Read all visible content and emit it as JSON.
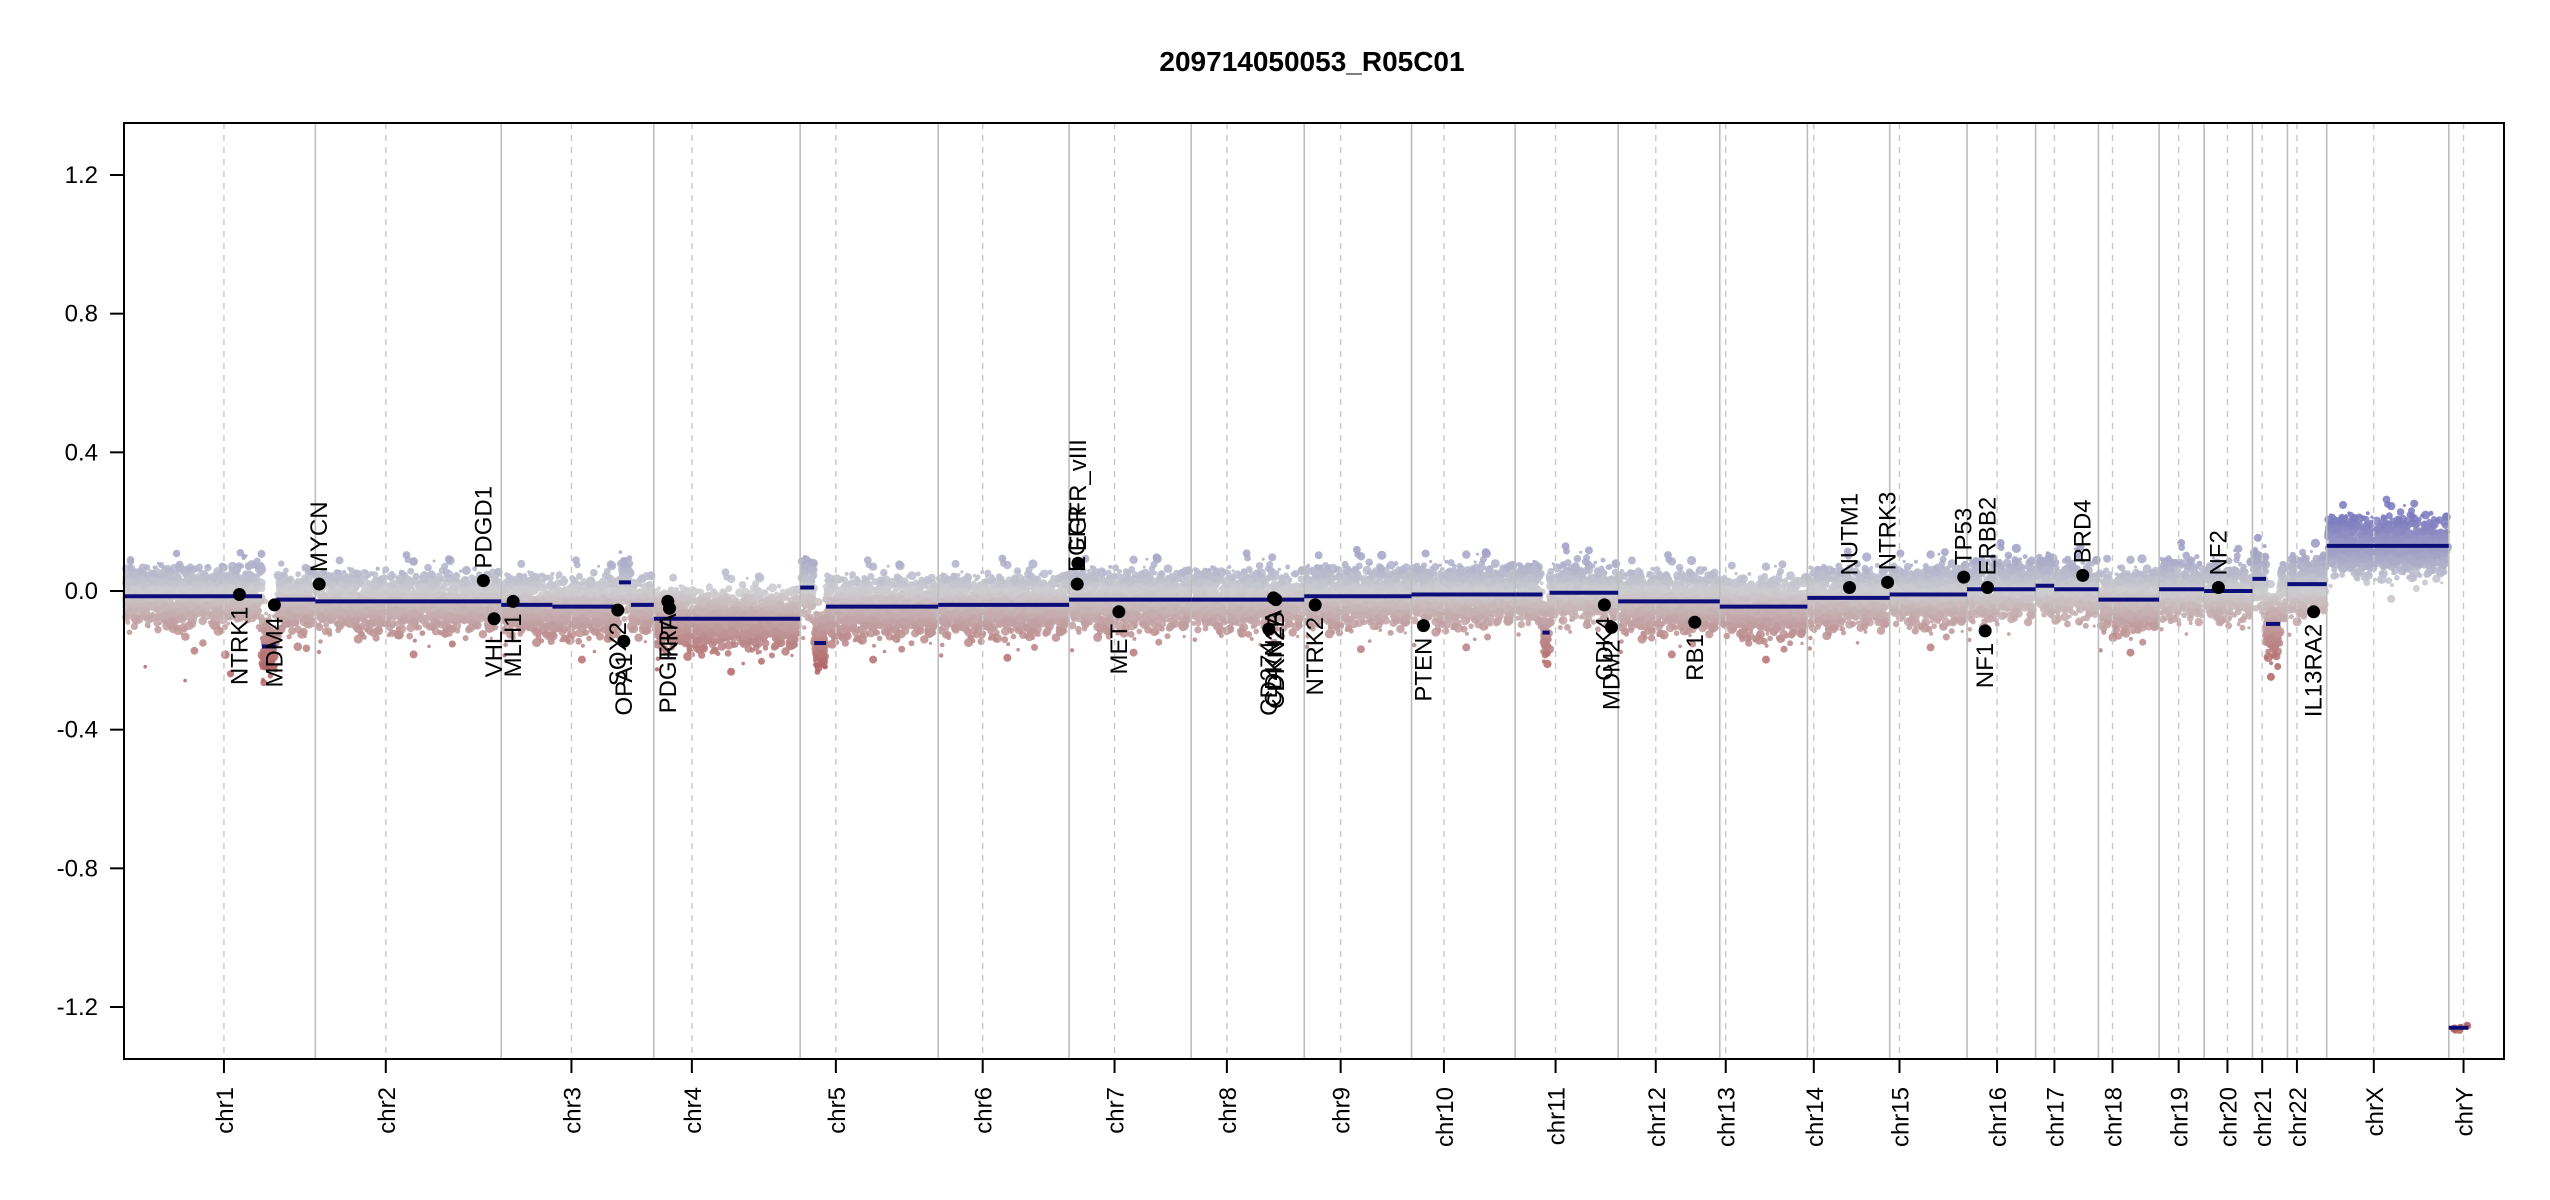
{
  "chart_data": {
    "type": "scatter",
    "title": "209714050053_R05C01",
    "xlabel": "",
    "ylabel": "",
    "ylim": [
      -1.35,
      1.35
    ],
    "y_ticks": [
      -1.2,
      -0.8,
      -0.4,
      0.0,
      0.4,
      0.8,
      1.2
    ],
    "y_tick_labels": [
      "-1.2",
      "-0.8",
      "-0.4",
      "0.0",
      "0.4",
      "0.8",
      "1.2"
    ],
    "grid": false,
    "x_units": "genome index (0-1000 scale)",
    "chromosomes": [
      {
        "name": "chr1",
        "start": 0,
        "end": 80.4,
        "centromere": 42.0
      },
      {
        "name": "chr2",
        "start": 80.4,
        "end": 158.5,
        "centromere": 110.0
      },
      {
        "name": "chr3",
        "start": 158.5,
        "end": 222.6,
        "centromere": 188.0
      },
      {
        "name": "chr4",
        "start": 222.6,
        "end": 284.1,
        "centromere": 238.6
      },
      {
        "name": "chr5",
        "start": 284.1,
        "end": 342.1,
        "centromere": 299.1
      },
      {
        "name": "chr6",
        "start": 342.1,
        "end": 397.1,
        "centromere": 360.8
      },
      {
        "name": "chr7",
        "start": 397.1,
        "end": 448.4,
        "centromere": 416.2
      },
      {
        "name": "chr8",
        "start": 448.4,
        "end": 495.9,
        "centromere": 463.4
      },
      {
        "name": "chr9",
        "start": 495.9,
        "end": 541.0,
        "centromere": 511.2
      },
      {
        "name": "chr10",
        "start": 541.0,
        "end": 584.5,
        "centromere": 554.6
      },
      {
        "name": "chr11",
        "start": 584.5,
        "end": 627.8,
        "centromere": 601.5
      },
      {
        "name": "chr12",
        "start": 627.8,
        "end": 670.5,
        "centromere": 643.6
      },
      {
        "name": "chr13",
        "start": 670.5,
        "end": 707.3,
        "centromere": 673.0
      },
      {
        "name": "chr14",
        "start": 707.3,
        "end": 741.9,
        "centromere": 710.0
      },
      {
        "name": "chr15",
        "start": 741.9,
        "end": 774.4,
        "centromere": 746.0
      },
      {
        "name": "chr16",
        "start": 774.4,
        "end": 803.2,
        "centromere": 787.0
      },
      {
        "name": "chr17",
        "start": 803.2,
        "end": 829.6,
        "centromere": 811.1
      },
      {
        "name": "chr18",
        "start": 829.6,
        "end": 855.1,
        "centromere": 835.5
      },
      {
        "name": "chr19",
        "start": 855.1,
        "end": 874.0,
        "centromere": 863.3
      },
      {
        "name": "chr20",
        "start": 874.0,
        "end": 894.3,
        "centromere": 883.8
      },
      {
        "name": "chr21",
        "start": 894.3,
        "end": 909.0,
        "centromere": 898.4
      },
      {
        "name": "chr22",
        "start": 909.0,
        "end": 925.5,
        "centromere": 913.0
      },
      {
        "name": "chrX",
        "start": 925.5,
        "end": 976.8,
        "centromere": 945.3
      },
      {
        "name": "chrY",
        "start": 976.8,
        "end": 1000.0,
        "centromere": 983.0
      }
    ],
    "segments": [
      {
        "x1": 0,
        "x2": 58,
        "y": -0.015
      },
      {
        "x1": 58,
        "x2": 64,
        "y": -0.16
      },
      {
        "x1": 64,
        "x2": 80.4,
        "y": -0.025
      },
      {
        "x1": 80.4,
        "x2": 158.5,
        "y": -0.03
      },
      {
        "x1": 158.5,
        "x2": 180,
        "y": -0.04
      },
      {
        "x1": 180,
        "x2": 208,
        "y": -0.045
      },
      {
        "x1": 208,
        "x2": 213,
        "y": 0.025
      },
      {
        "x1": 213,
        "x2": 222.6,
        "y": -0.04
      },
      {
        "x1": 222.6,
        "x2": 284.1,
        "y": -0.08
      },
      {
        "x1": 284.1,
        "x2": 290,
        "y": 0.01
      },
      {
        "x1": 290,
        "x2": 295,
        "y": -0.15
      },
      {
        "x1": 295,
        "x2": 342.1,
        "y": -0.045
      },
      {
        "x1": 342.1,
        "x2": 397.1,
        "y": -0.04
      },
      {
        "x1": 397.1,
        "x2": 448.4,
        "y": -0.025
      },
      {
        "x1": 448.4,
        "x2": 495.9,
        "y": -0.025
      },
      {
        "x1": 495.9,
        "x2": 541.0,
        "y": -0.015
      },
      {
        "x1": 541.0,
        "x2": 584.5,
        "y": -0.01
      },
      {
        "x1": 584.5,
        "x2": 596,
        "y": -0.01
      },
      {
        "x1": 596,
        "x2": 599,
        "y": -0.12
      },
      {
        "x1": 599,
        "x2": 627.8,
        "y": -0.005
      },
      {
        "x1": 627.8,
        "x2": 670.5,
        "y": -0.03
      },
      {
        "x1": 670.5,
        "x2": 707.3,
        "y": -0.045
      },
      {
        "x1": 707.3,
        "x2": 741.9,
        "y": -0.02
      },
      {
        "x1": 741.9,
        "x2": 774.4,
        "y": -0.01
      },
      {
        "x1": 774.4,
        "x2": 803.2,
        "y": 0.005
      },
      {
        "x1": 803.2,
        "x2": 811,
        "y": 0.015
      },
      {
        "x1": 811,
        "x2": 829.6,
        "y": 0.005
      },
      {
        "x1": 829.6,
        "x2": 855.1,
        "y": -0.025
      },
      {
        "x1": 855.1,
        "x2": 874.0,
        "y": 0.005
      },
      {
        "x1": 874.0,
        "x2": 894.3,
        "y": 0.0
      },
      {
        "x1": 894.3,
        "x2": 900,
        "y": 0.035
      },
      {
        "x1": 900,
        "x2": 906,
        "y": -0.095
      },
      {
        "x1": 909.0,
        "x2": 925.5,
        "y": 0.02
      },
      {
        "x1": 925.5,
        "x2": 976.8,
        "y": 0.13
      },
      {
        "x1": 976.8,
        "x2": 985,
        "y": -1.26
      }
    ],
    "genes": [
      {
        "name": "NTRK1",
        "x": 48.5,
        "y": -0.01,
        "label_side": "below"
      },
      {
        "name": "MDM4",
        "x": 63.2,
        "y": -0.04,
        "label_side": "below"
      },
      {
        "name": "MYCN",
        "x": 82.0,
        "y": 0.02,
        "label_side": "above"
      },
      {
        "name": "PDGD1",
        "x": 151.0,
        "y": 0.03,
        "label_side": "above"
      },
      {
        "name": "VHL",
        "x": 155.5,
        "y": -0.08,
        "label_side": "below"
      },
      {
        "name": "MLH1",
        "x": 163.5,
        "y": -0.03,
        "label_side": "below"
      },
      {
        "name": "SOX2",
        "x": 207.5,
        "y": -0.055,
        "label_side": "below"
      },
      {
        "name": "OPA1",
        "x": 210.0,
        "y": -0.145,
        "label_side": "below"
      },
      {
        "name": "PDGFRA",
        "x": 228.5,
        "y": -0.03,
        "label_side": "below"
      },
      {
        "name": "KIT",
        "x": 229.2,
        "y": -0.05,
        "label_side": "below"
      },
      {
        "name": "EGFR",
        "x": 400.5,
        "y": 0.02,
        "label_side": "above"
      },
      {
        "name": "EGFR_vIII",
        "x": 400.8,
        "y": 0.08,
        "label_side": "above"
      },
      {
        "name": "MET",
        "x": 418.0,
        "y": -0.06,
        "label_side": "below"
      },
      {
        "name": "CD274",
        "x": 481.0,
        "y": -0.11,
        "label_side": "below"
      },
      {
        "name": "CDKN2A",
        "x": 483.0,
        "y": -0.02,
        "label_side": "below"
      },
      {
        "name": "CDKN2B",
        "x": 484.0,
        "y": -0.025,
        "label_side": "below"
      },
      {
        "name": "NTRK2",
        "x": 500.5,
        "y": -0.04,
        "label_side": "below"
      },
      {
        "name": "PTEN",
        "x": 546.0,
        "y": -0.1,
        "label_side": "below"
      },
      {
        "name": "CDK4",
        "x": 622.0,
        "y": -0.04,
        "label_side": "below"
      },
      {
        "name": "MDM2",
        "x": 625.0,
        "y": -0.105,
        "label_side": "below"
      },
      {
        "name": "RB1",
        "x": 660.0,
        "y": -0.09,
        "label_side": "below"
      },
      {
        "name": "NUTM1",
        "x": 725.0,
        "y": 0.01,
        "label_side": "above"
      },
      {
        "name": "NTRK3",
        "x": 741.0,
        "y": 0.025,
        "label_side": "above"
      },
      {
        "name": "TP53",
        "x": 773.0,
        "y": 0.04,
        "label_side": "above"
      },
      {
        "name": "NF1",
        "x": 782.0,
        "y": -0.115,
        "label_side": "below"
      },
      {
        "name": "ERBB2",
        "x": 783.0,
        "y": 0.01,
        "label_side": "above"
      },
      {
        "name": "BRD4",
        "x": 823.0,
        "y": 0.045,
        "label_side": "above"
      },
      {
        "name": "NF2",
        "x": 880.0,
        "y": 0.01,
        "label_side": "above"
      },
      {
        "name": "IL13RA2",
        "x": 920.0,
        "y": -0.06,
        "label_side": "below"
      }
    ]
  }
}
